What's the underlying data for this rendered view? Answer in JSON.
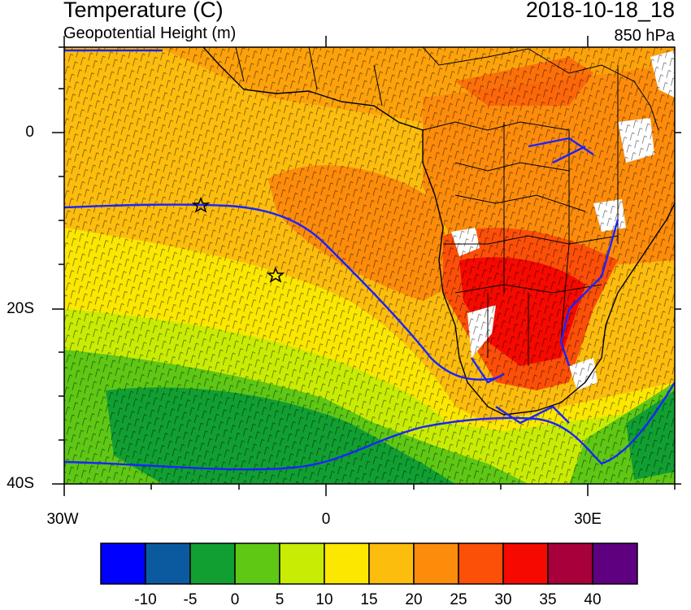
{
  "header": {
    "title": "Temperature (C)",
    "subtitle": "Geopotential Height (m)",
    "datetime": "2018-10-18_18",
    "level": "850 hPa"
  },
  "axes": {
    "lat_labels": [
      "0",
      "20S",
      "40S"
    ],
    "lon_labels": [
      "30W",
      "0",
      "30E"
    ],
    "lat_values": [
      0,
      -20,
      -40
    ],
    "lon_values": [
      -30,
      0,
      30
    ],
    "lat_range": [
      10,
      -40
    ],
    "lon_range": [
      -30,
      40
    ]
  },
  "colorbar": {
    "labels": [
      "-10",
      "-5",
      "0",
      "5",
      "10",
      "15",
      "20",
      "25",
      "30",
      "35",
      "40"
    ],
    "colors": [
      "#0000ff",
      "#0b5aa0",
      "#119f32",
      "#5ec815",
      "#c9ec04",
      "#fbe700",
      "#fdbd0d",
      "#fd8c0b",
      "#fc4f08",
      "#f50900",
      "#a8003a",
      "#5f0080"
    ]
  },
  "map_colors": {
    "contour_line": "#1a24ff",
    "coast": "#000000",
    "wind_barb": "#000000"
  },
  "markers": [
    "star-marker-1",
    "star-marker-2"
  ]
}
